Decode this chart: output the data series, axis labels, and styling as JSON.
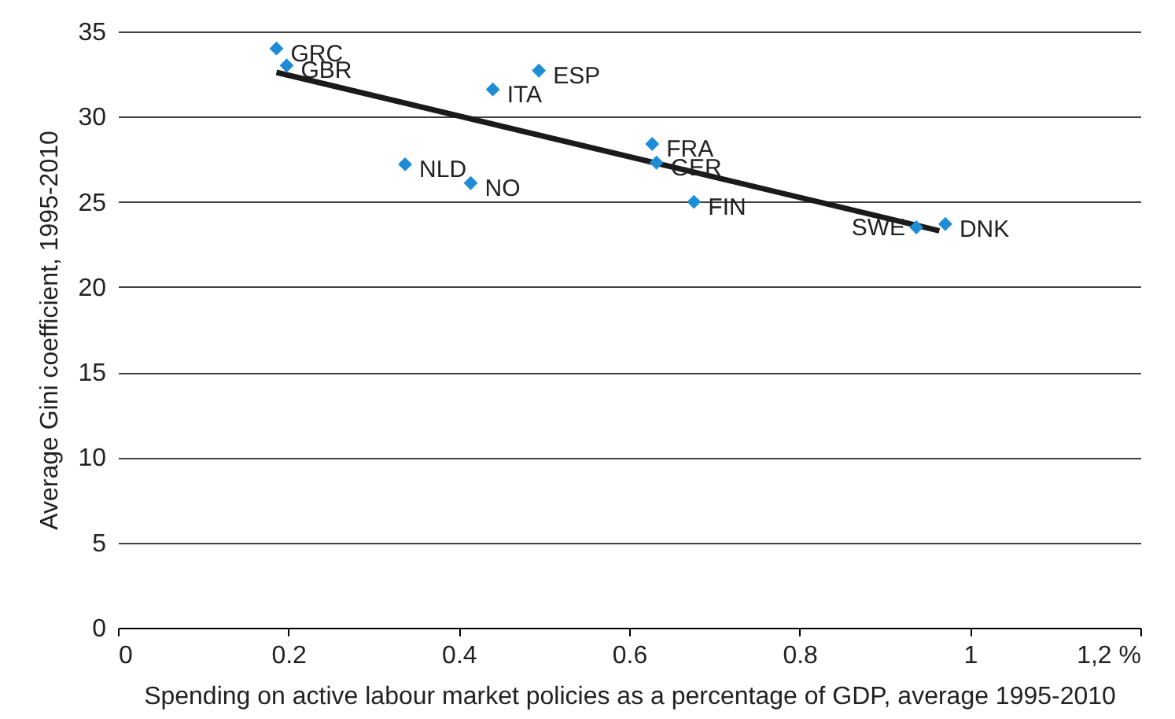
{
  "chart_data": {
    "type": "scatter",
    "xlabel": "Spending on active labour market policies as a percentage of GDP, average 1995-2010",
    "ylabel": "Average Gini coefficient, 1995-2010",
    "xlim": [
      0,
      1.2
    ],
    "xticks": [
      0,
      0.2,
      0.4,
      0.6,
      0.8,
      1,
      {
        "value": 1.2,
        "label": "1,2 %"
      }
    ],
    "ylim": [
      0,
      35
    ],
    "yticks": [
      0,
      5,
      10,
      15,
      20,
      25,
      30,
      35
    ],
    "grid": "y",
    "marker": "diamond",
    "series": [
      {
        "color": "#1f8dd6",
        "x": [
          0.186,
          0.198,
          0.44,
          0.494,
          0.337,
          0.414,
          0.627,
          0.632,
          0.676,
          0.937,
          0.971
        ],
        "values": [
          34.0,
          33.0,
          31.6,
          32.7,
          27.2,
          26.1,
          28.4,
          27.3,
          25.0,
          23.5,
          23.7
        ]
      },
      {
        "type": "line",
        "marker": "none",
        "color": "#1a1a1a",
        "x": [
          0.186,
          0.964
        ],
        "values": [
          32.6,
          23.3
        ]
      }
    ],
    "annotations": [
      {
        "text": "GRC",
        "x": 0.186,
        "y": 34.0
      },
      {
        "text": "GBR",
        "x": 0.198,
        "y": 33.0
      },
      {
        "text": "ITA",
        "x": 0.44,
        "y": 31.6
      },
      {
        "text": "ESP",
        "x": 0.494,
        "y": 32.7
      },
      {
        "text": "NLD",
        "x": 0.337,
        "y": 27.2
      },
      {
        "text": "NO",
        "x": 0.414,
        "y": 26.1
      },
      {
        "text": "FRA",
        "x": 0.627,
        "y": 28.4
      },
      {
        "text": "GER",
        "x": 0.632,
        "y": 27.3
      },
      {
        "text": "FIN",
        "x": 0.676,
        "y": 25.0
      },
      {
        "text": "SWE",
        "x": 0.937,
        "y": 23.5
      },
      {
        "text": "DNK",
        "x": 0.971,
        "y": 23.7
      }
    ]
  }
}
